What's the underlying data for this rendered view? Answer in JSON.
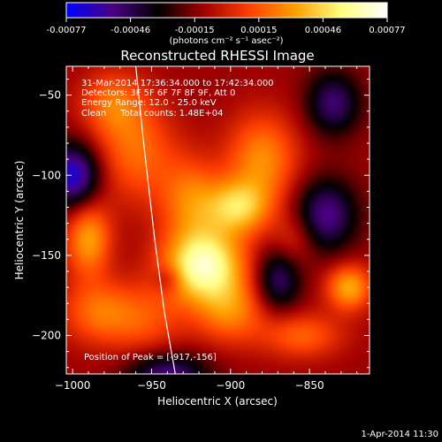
{
  "chart_data": {
    "type": "heatmap",
    "title": "Reconstructed RHESSI Image",
    "xlabel": "Heliocentric X (arcsec)",
    "ylabel": "Heliocentric Y (arcsec)",
    "xlim": [
      -1004,
      -812
    ],
    "ylim": [
      -224,
      -32
    ],
    "xticks": [
      -1000,
      -950,
      -900,
      -850
    ],
    "yticks": [
      -200,
      -150,
      -100,
      -50
    ],
    "colorbar": {
      "label": "(photons cm⁻² s⁻¹ asec⁻²)",
      "ticks": [
        "-0.00077",
        "-0.00046",
        "-0.00015",
        "0.00015",
        "0.00046",
        "0.00077"
      ],
      "range": [
        -0.00077,
        0.00077
      ],
      "colors": [
        "#0000ff",
        "#4b0082",
        "#000000",
        "#a00000",
        "#ff4000",
        "#ffa000",
        "#ffff80",
        "#ffffff"
      ]
    },
    "annotations": [
      "31-Mar-2014 17:36:34.000 to 17:42:34.000",
      "Detectors: 3F 5F 6F 7F 8F 9F, Att 0",
      "Energy Range: 12.0 - 25.0 keV",
      "Clean     Total counts: 1.48E+04"
    ],
    "peak_label": "Position of Peak = [-917,-156]",
    "peak": [
      -917,
      -156
    ],
    "limb_curve": {
      "x": [
        -960,
        -955,
        -948,
        -942,
        -935
      ],
      "y": [
        -32,
        -80,
        -140,
        -185,
        -224
      ]
    },
    "blobs": [
      {
        "x": -917,
        "y": -156,
        "amp": 0.00077,
        "sx": 18,
        "sy": 16
      },
      {
        "x": -895,
        "y": -120,
        "amp": 0.0005,
        "sx": 14,
        "sy": 12
      },
      {
        "x": -880,
        "y": -90,
        "amp": 0.0004,
        "sx": 16,
        "sy": 20
      },
      {
        "x": -925,
        "y": -115,
        "amp": 0.00035,
        "sx": 14,
        "sy": 18
      },
      {
        "x": -960,
        "y": -85,
        "amp": 0.00032,
        "sx": 18,
        "sy": 22
      },
      {
        "x": -975,
        "y": -55,
        "amp": 0.0003,
        "sx": 14,
        "sy": 14
      },
      {
        "x": -990,
        "y": -140,
        "amp": 0.00045,
        "sx": 10,
        "sy": 16
      },
      {
        "x": -985,
        "y": -185,
        "amp": 0.0003,
        "sx": 16,
        "sy": 14
      },
      {
        "x": -955,
        "y": -190,
        "amp": 0.00025,
        "sx": 18,
        "sy": 16
      },
      {
        "x": -900,
        "y": -185,
        "amp": 0.00035,
        "sx": 16,
        "sy": 14
      },
      {
        "x": -825,
        "y": -170,
        "amp": 0.00048,
        "sx": 10,
        "sy": 10
      },
      {
        "x": -855,
        "y": -200,
        "amp": 0.0003,
        "sx": 18,
        "sy": 10
      },
      {
        "x": -860,
        "y": -140,
        "amp": 0.0002,
        "sx": 10,
        "sy": 12
      },
      {
        "x": -1000,
        "y": -100,
        "amp": -0.0006,
        "sx": 12,
        "sy": 14
      },
      {
        "x": -840,
        "y": -125,
        "amp": -0.00045,
        "sx": 14,
        "sy": 16
      },
      {
        "x": -870,
        "y": -165,
        "amp": -0.0004,
        "sx": 10,
        "sy": 14
      },
      {
        "x": -940,
        "y": -225,
        "amp": -0.00045,
        "sx": 18,
        "sy": 10
      },
      {
        "x": -835,
        "y": -55,
        "amp": -0.0004,
        "sx": 12,
        "sy": 14
      },
      {
        "x": -940,
        "y": -165,
        "amp": -0.0002,
        "sx": 6,
        "sy": 6
      }
    ]
  },
  "timestamp": "1-Apr-2014 11:30"
}
